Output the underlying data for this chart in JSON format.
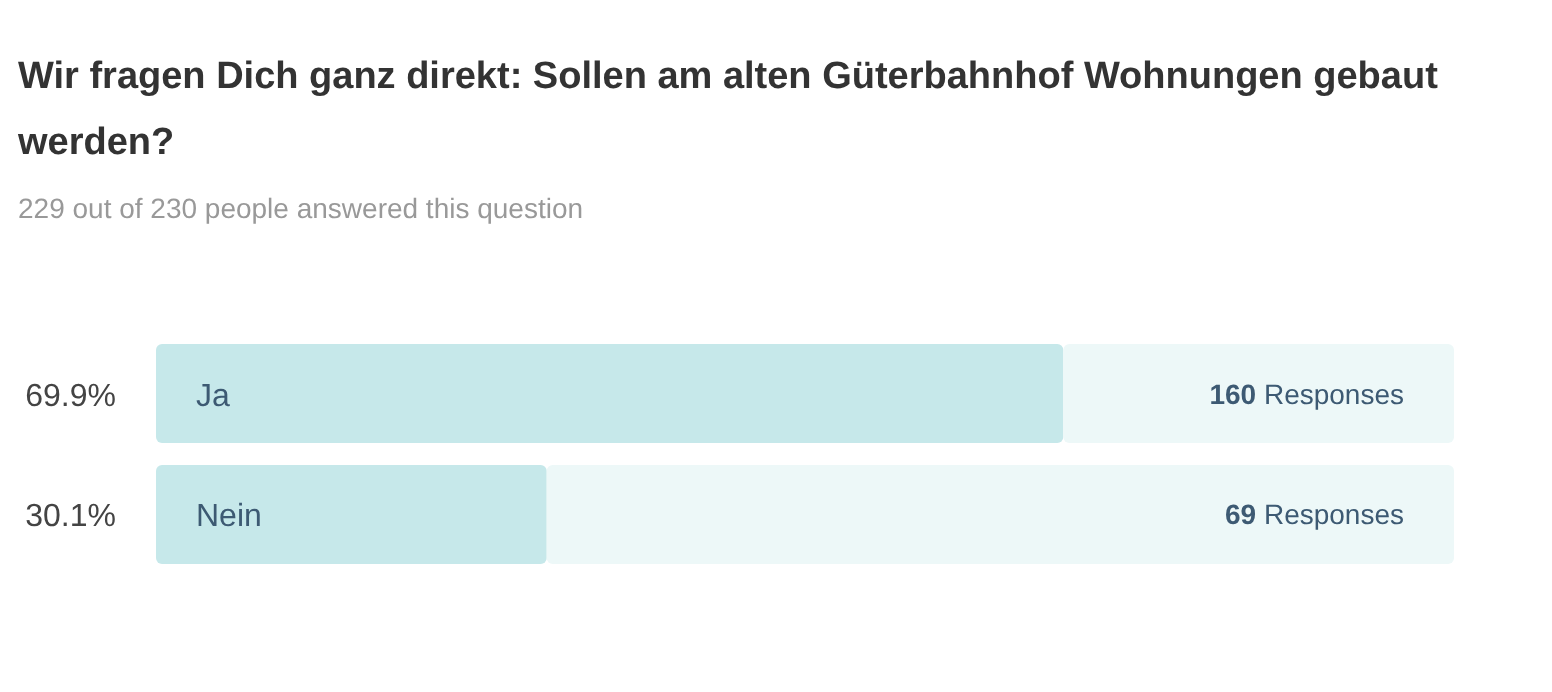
{
  "chart_data": {
    "type": "bar",
    "orientation": "horizontal",
    "stacked": true,
    "title": "Wir fragen Dich ganz direkt: Sollen am alten Güterbahnhof Wohnungen gebaut werden?",
    "subtitle": "229 out of 230 people answered this question",
    "categories": [
      "Ja",
      "Nein"
    ],
    "xlim": [
      0,
      100
    ],
    "tick_labels": "y",
    "series": [
      {
        "color": "#c6e8ea",
        "values": [
          69.9,
          30.1
        ],
        "value_labels": [
          "69.9%",
          "30.1%"
        ]
      },
      {
        "color": "#edf8f8",
        "values": [
          30.1,
          69.9
        ]
      }
    ],
    "annotations": [
      "160 Responses",
      "69 Responses"
    ]
  }
}
